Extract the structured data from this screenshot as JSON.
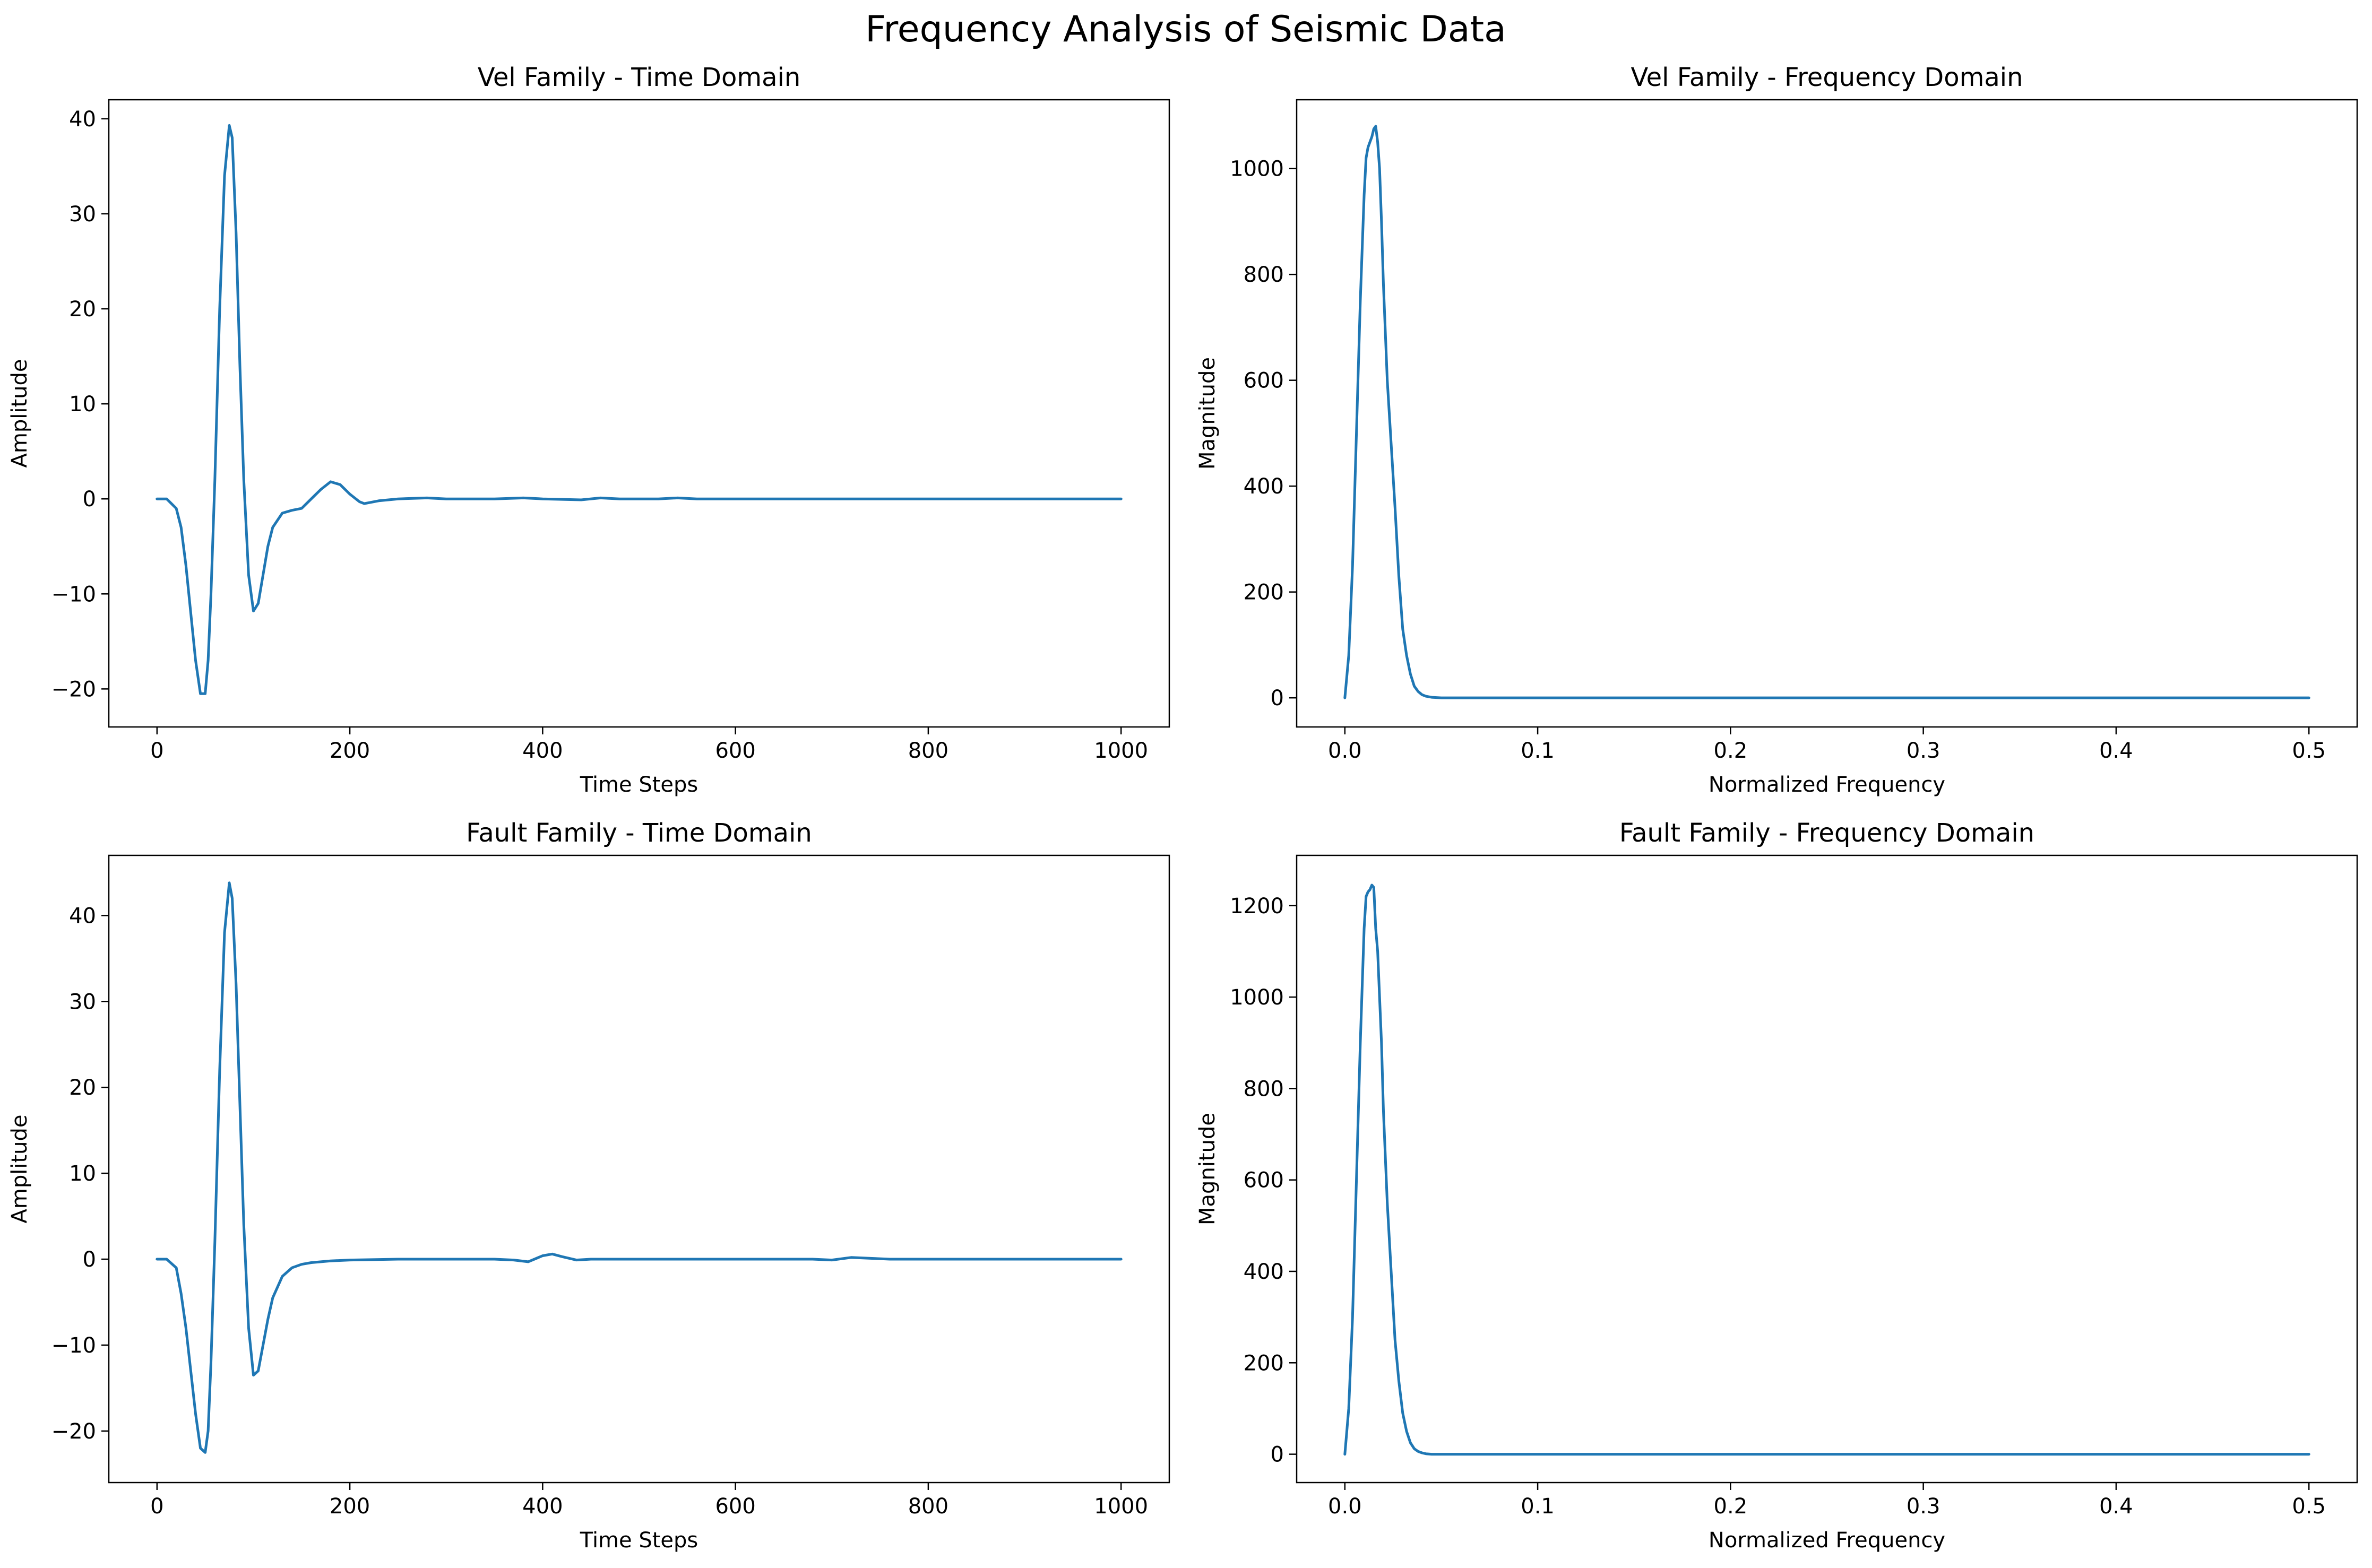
{
  "figure": {
    "suptitle": "Frequency Analysis of Seismic Data",
    "line_color": "#1f77b4"
  },
  "chart_data": [
    {
      "type": "line",
      "title": "Vel Family - Time Domain",
      "xlabel": "Time Steps",
      "ylabel": "Amplitude",
      "xlim": [
        -50,
        1050
      ],
      "ylim": [
        -24,
        42
      ],
      "xticks": [
        0,
        200,
        400,
        600,
        800,
        1000
      ],
      "xtick_labels": [
        "0",
        "200",
        "400",
        "600",
        "800",
        "1000"
      ],
      "yticks": [
        -20,
        -10,
        0,
        10,
        20,
        30,
        40
      ],
      "ytick_labels": [
        "−20",
        "−10",
        "0",
        "10",
        "20",
        "30",
        "40"
      ],
      "grid": false,
      "series": [
        {
          "x": [
            0,
            10,
            20,
            25,
            30,
            35,
            40,
            45,
            50,
            53,
            56,
            60,
            65,
            70,
            75,
            78,
            82,
            86,
            90,
            95,
            100,
            105,
            110,
            115,
            120,
            130,
            140,
            150,
            160,
            170,
            180,
            190,
            200,
            210,
            215,
            220,
            230,
            250,
            280,
            300,
            330,
            350,
            380,
            400,
            440,
            460,
            480,
            520,
            540,
            560,
            600,
            700,
            800,
            900,
            1000
          ],
          "y": [
            0,
            0,
            -1,
            -3,
            -7,
            -12,
            -17,
            -20.5,
            -20.5,
            -17,
            -10,
            2,
            20,
            34,
            39.3,
            38,
            28,
            14,
            2,
            -8,
            -11.8,
            -11,
            -8,
            -5,
            -3,
            -1.5,
            -1.2,
            -1,
            0,
            1,
            1.8,
            1.5,
            0.5,
            -0.3,
            -0.5,
            -0.4,
            -0.2,
            0,
            0.1,
            0,
            0,
            0,
            0.1,
            0,
            -0.1,
            0.1,
            0,
            0,
            0.1,
            0,
            0,
            0,
            0,
            0,
            0
          ]
        }
      ]
    },
    {
      "type": "line",
      "title": "Vel Family - Frequency Domain",
      "xlabel": "Normalized Frequency",
      "ylabel": "Magnitude",
      "xlim": [
        -0.025,
        0.525
      ],
      "ylim": [
        -55,
        1130
      ],
      "xticks": [
        0,
        0.1,
        0.2,
        0.3,
        0.4,
        0.5
      ],
      "xtick_labels": [
        "0.0",
        "0.1",
        "0.2",
        "0.3",
        "0.4",
        "0.5"
      ],
      "yticks": [
        0,
        200,
        400,
        600,
        800,
        1000
      ],
      "ytick_labels": [
        "0",
        "200",
        "400",
        "600",
        "800",
        "1000"
      ],
      "grid": false,
      "series": [
        {
          "x": [
            0,
            0.002,
            0.004,
            0.006,
            0.008,
            0.01,
            0.011,
            0.012,
            0.013,
            0.014,
            0.015,
            0.016,
            0.017,
            0.018,
            0.019,
            0.02,
            0.022,
            0.024,
            0.026,
            0.028,
            0.03,
            0.032,
            0.034,
            0.036,
            0.038,
            0.04,
            0.042,
            0.045,
            0.05,
            0.06,
            0.1,
            0.2,
            0.3,
            0.4,
            0.5
          ],
          "y": [
            0,
            80,
            250,
            500,
            750,
            950,
            1020,
            1040,
            1050,
            1060,
            1075,
            1080,
            1050,
            1000,
            900,
            780,
            600,
            480,
            360,
            230,
            130,
            80,
            45,
            22,
            12,
            6,
            3,
            1,
            0,
            0,
            0,
            0,
            0,
            0,
            0
          ]
        }
      ]
    },
    {
      "type": "line",
      "title": "Fault Family - Time Domain",
      "xlabel": "Time Steps",
      "ylabel": "Amplitude",
      "xlim": [
        -50,
        1050
      ],
      "ylim": [
        -26,
        47
      ],
      "xticks": [
        0,
        200,
        400,
        600,
        800,
        1000
      ],
      "xtick_labels": [
        "0",
        "200",
        "400",
        "600",
        "800",
        "1000"
      ],
      "yticks": [
        -20,
        -10,
        0,
        10,
        20,
        30,
        40
      ],
      "ytick_labels": [
        "−20",
        "−10",
        "0",
        "10",
        "20",
        "30",
        "40"
      ],
      "grid": false,
      "series": [
        {
          "x": [
            0,
            10,
            20,
            25,
            30,
            35,
            40,
            45,
            50,
            53,
            56,
            60,
            65,
            70,
            75,
            78,
            82,
            86,
            90,
            95,
            100,
            105,
            110,
            115,
            120,
            130,
            140,
            150,
            160,
            180,
            200,
            250,
            300,
            350,
            370,
            385,
            400,
            410,
            420,
            435,
            450,
            500,
            600,
            680,
            700,
            720,
            740,
            760,
            800,
            900,
            1000
          ],
          "y": [
            0,
            0,
            -1,
            -4,
            -8,
            -13,
            -18,
            -22,
            -22.5,
            -20,
            -12,
            2,
            22,
            38,
            43.8,
            42,
            32,
            18,
            4,
            -8,
            -13.5,
            -13,
            -10,
            -7,
            -4.5,
            -2,
            -1,
            -0.6,
            -0.4,
            -0.2,
            -0.1,
            0,
            0,
            0,
            -0.1,
            -0.3,
            0.4,
            0.6,
            0.3,
            -0.1,
            0,
            0,
            0,
            0,
            -0.1,
            0.2,
            0.1,
            0,
            0,
            0,
            0
          ]
        }
      ]
    },
    {
      "type": "line",
      "title": "Fault Family - Frequency Domain",
      "xlabel": "Normalized Frequency",
      "ylabel": "Magnitude",
      "xlim": [
        -0.025,
        0.525
      ],
      "ylim": [
        -62,
        1310
      ],
      "xticks": [
        0,
        0.1,
        0.2,
        0.3,
        0.4,
        0.5
      ],
      "xtick_labels": [
        "0.0",
        "0.1",
        "0.2",
        "0.3",
        "0.4",
        "0.5"
      ],
      "yticks": [
        0,
        200,
        400,
        600,
        800,
        1000,
        1200
      ],
      "ytick_labels": [
        "0",
        "200",
        "400",
        "600",
        "800",
        "1000",
        "1200"
      ],
      "grid": false,
      "series": [
        {
          "x": [
            0,
            0.002,
            0.004,
            0.006,
            0.008,
            0.01,
            0.011,
            0.012,
            0.013,
            0.014,
            0.015,
            0.016,
            0.017,
            0.018,
            0.019,
            0.02,
            0.022,
            0.024,
            0.026,
            0.028,
            0.03,
            0.032,
            0.034,
            0.036,
            0.038,
            0.04,
            0.042,
            0.045,
            0.05,
            0.06,
            0.1,
            0.2,
            0.3,
            0.4,
            0.5
          ],
          "y": [
            0,
            100,
            300,
            600,
            900,
            1150,
            1220,
            1230,
            1235,
            1245,
            1240,
            1150,
            1100,
            1000,
            900,
            750,
            550,
            400,
            250,
            160,
            90,
            50,
            25,
            12,
            6,
            3,
            1,
            0,
            0,
            0,
            0,
            0,
            0,
            0,
            0
          ]
        }
      ]
    }
  ]
}
